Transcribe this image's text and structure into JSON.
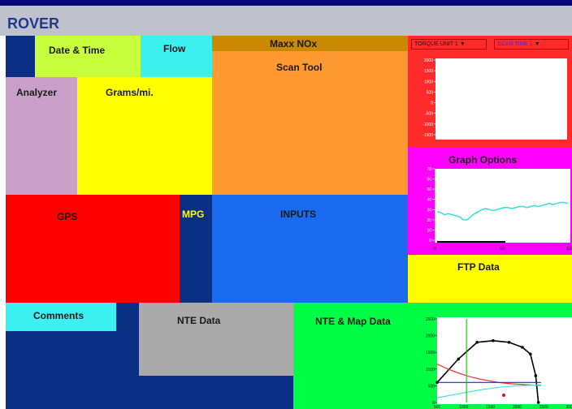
{
  "app": {
    "title": "ROVER"
  },
  "tiles": {
    "date_time": "Date & Time",
    "flow": "Flow",
    "maxx_nox": "Maxx NOx",
    "scan_tool": "Scan Tool",
    "analyzer": "Analyzer",
    "grams_mi": "Grams/mi.",
    "gps": "GPS",
    "mpg": "MPG",
    "inputs": "INPUTS",
    "comments": "Comments",
    "nte_data": "NTE Data",
    "nte_map_data": "NTE & Map Data",
    "graph_options": "Graph Options",
    "ftp_data": "FTP Data"
  },
  "top_graph": {
    "select_1": "TORQUE UNIT 1",
    "select_2": "SCAN TIME 1",
    "y_ticks": [
      "2000",
      "1500",
      "1000",
      "500",
      "0",
      "-500",
      "-1000",
      "-1500"
    ]
  },
  "mid_graph": {
    "y_ticks": [
      "70",
      "60",
      "50",
      "40",
      "30",
      "20",
      "10",
      "0"
    ],
    "x_ticks": [
      "0",
      "50",
      "100"
    ]
  },
  "nte_chart": {
    "y_ticks": [
      "2500",
      "2000",
      "1500",
      "1000",
      "500",
      "0"
    ],
    "x_ticks": [
      "500",
      "1000",
      "1500",
      "2000",
      "2500",
      "3000"
    ]
  },
  "chart_data": [
    {
      "type": "line",
      "series": [
        {
          "values": [
            28,
            27,
            25,
            26,
            25,
            24,
            23,
            20,
            20,
            23,
            26,
            28,
            30,
            31,
            30,
            29,
            30,
            31,
            32,
            32,
            31,
            32,
            33,
            33,
            32,
            33,
            34,
            33,
            34,
            35,
            36,
            35,
            36,
            37,
            37,
            36
          ]
        }
      ],
      "ylim": [
        0,
        70
      ],
      "x_range": [
        0,
        100
      ]
    },
    {
      "type": "line",
      "x_range": [
        500,
        3000
      ],
      "ylim": [
        0,
        2500
      ],
      "series": [
        {
          "color": "#000000",
          "x": [
            500,
            900,
            1250,
            1550,
            1850,
            2100,
            2250,
            2350,
            2400
          ],
          "values": [
            600,
            1300,
            1800,
            1850,
            1800,
            1650,
            1450,
            800,
            0
          ]
        },
        {
          "color": "#ff2020",
          "x": [
            500,
            700,
            900,
            1100,
            1300,
            1500,
            1700,
            1900,
            2100,
            2300,
            2450
          ],
          "values": [
            1150,
            1000,
            880,
            780,
            700,
            640,
            590,
            560,
            540,
            520,
            510
          ]
        },
        {
          "color": "#33dddd",
          "x": [
            500,
            800,
            1100,
            1400,
            1700,
            2000,
            2300,
            2450
          ],
          "values": [
            140,
            230,
            320,
            400,
            460,
            500,
            520,
            530
          ]
        },
        {
          "color": "#2020ff",
          "x": [
            500,
            2450
          ],
          "values": [
            600,
            600
          ]
        },
        {
          "color": "#00cc00",
          "x": [
            1050,
            1050
          ],
          "values": [
            0,
            2500
          ]
        }
      ]
    }
  ]
}
